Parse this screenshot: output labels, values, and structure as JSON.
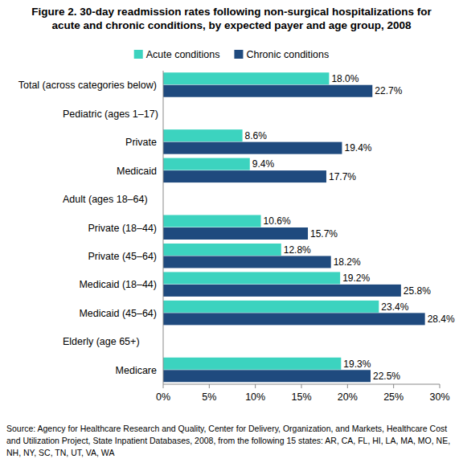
{
  "chart_data": {
    "type": "bar",
    "orientation": "horizontal",
    "title": "Figure 2. 30-day readmission rates following non-surgical hospitalizations for acute and chronic conditions, by expected payer and age group, 2008",
    "annotation": "Source: Agency for Healthcare Research and Quality, Center for Delivery, Organization, and Markets, Healthcare Cost and Utilization Project, State Inpatient Databases, 2008, from the following 15 states: AR, CA, FL, HI, LA, MA, MO, NE, NH, NY, SC, TN, UT, VA, WA",
    "categories": [
      "Total (across categories below)",
      "Pediatric (ages 1–17)",
      "Private",
      "Medicaid",
      "Adult (ages 18–64)",
      "Private (18–44)",
      "Private (45–64)",
      "Medicaid (18–44)",
      "Medicaid (45–64)",
      "Elderly (age 65+)",
      "Medicare"
    ],
    "series": [
      {
        "name": "Acute conditions",
        "color": "#3cd3bf",
        "values": [
          18.0,
          null,
          8.6,
          9.4,
          null,
          10.6,
          12.8,
          19.2,
          23.4,
          null,
          19.3
        ],
        "value_labels": [
          "18.0%",
          null,
          "8.6%",
          "9.4%",
          null,
          "10.6%",
          "12.8%",
          "19.2%",
          "23.4%",
          null,
          "19.3%"
        ]
      },
      {
        "name": "Chronic conditions",
        "color": "#1f4a7e",
        "values": [
          22.7,
          null,
          19.4,
          17.7,
          null,
          15.7,
          18.2,
          25.8,
          28.4,
          null,
          22.5
        ],
        "value_labels": [
          "22.7%",
          null,
          "19.4%",
          "17.7%",
          null,
          "15.7%",
          "18.2%",
          "25.8%",
          "28.4%",
          null,
          "22.5%"
        ]
      }
    ],
    "xlim": [
      0,
      30
    ],
    "xticks": [
      {
        "value": 0,
        "label": "0%"
      },
      {
        "value": 5,
        "label": "5%"
      },
      {
        "value": 10,
        "label": "10%"
      },
      {
        "value": 15,
        "label": "15%"
      },
      {
        "value": 20,
        "label": "20%"
      },
      {
        "value": 25,
        "label": "25%"
      },
      {
        "value": 30,
        "label": "30%"
      }
    ],
    "grid": false,
    "legend": "top",
    "data_labels": true
  }
}
